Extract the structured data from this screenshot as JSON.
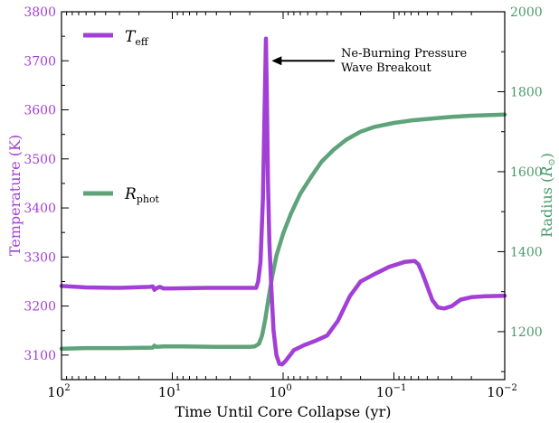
{
  "chart_data": {
    "type": "line",
    "title": "",
    "xlabel": "Time Until Core Collapse (yr)",
    "x_scale": "log",
    "x_reversed": true,
    "xlim": [
      100,
      0.01
    ],
    "x_ticks": [
      {
        "value": 100,
        "base": "10",
        "exp": "2"
      },
      {
        "value": 10,
        "base": "10",
        "exp": "1"
      },
      {
        "value": 1,
        "base": "10",
        "exp": "0"
      },
      {
        "value": 0.1,
        "base": "10",
        "exp": "−1"
      },
      {
        "value": 0.01,
        "base": "10",
        "exp": "−2"
      }
    ],
    "y_left": {
      "label": "Temperature (K)",
      "lim": [
        3050,
        3800
      ],
      "ticks": [
        "3100",
        "3200",
        "3300",
        "3400",
        "3500",
        "3600",
        "3700",
        "3800"
      ],
      "color": "#a23fd6"
    },
    "y_right": {
      "label_main": "Radius (",
      "label_sym": "R",
      "label_sub": "⊙",
      "label_close": ")",
      "lim": [
        1080,
        2000
      ],
      "ticks": [
        "1200",
        "1400",
        "1600",
        "1800",
        "2000"
      ],
      "color": "#4a9a6a"
    },
    "series": [
      {
        "name_main": "T",
        "name_sub": "eff",
        "axis": "left",
        "color": "#a23fd6",
        "points": [
          [
            100,
            3241
          ],
          [
            60,
            3238
          ],
          [
            30,
            3237
          ],
          [
            16,
            3239
          ],
          [
            15,
            3240
          ],
          [
            14.5,
            3233
          ],
          [
            14,
            3236
          ],
          [
            13,
            3239
          ],
          [
            12,
            3236
          ],
          [
            10,
            3236
          ],
          [
            5,
            3237
          ],
          [
            2,
            3237
          ],
          [
            1.75,
            3237
          ],
          [
            1.68,
            3250
          ],
          [
            1.6,
            3290
          ],
          [
            1.52,
            3420
          ],
          [
            1.47,
            3600
          ],
          [
            1.43,
            3745
          ],
          [
            1.4,
            3620
          ],
          [
            1.37,
            3450
          ],
          [
            1.33,
            3330
          ],
          [
            1.28,
            3240
          ],
          [
            1.22,
            3150
          ],
          [
            1.15,
            3100
          ],
          [
            1.08,
            3082
          ],
          [
            1.02,
            3081
          ],
          [
            0.95,
            3088
          ],
          [
            0.8,
            3110
          ],
          [
            0.65,
            3120
          ],
          [
            0.5,
            3130
          ],
          [
            0.4,
            3140
          ],
          [
            0.32,
            3170
          ],
          [
            0.25,
            3220
          ],
          [
            0.2,
            3250
          ],
          [
            0.15,
            3265
          ],
          [
            0.11,
            3280
          ],
          [
            0.08,
            3290
          ],
          [
            0.065,
            3292
          ],
          [
            0.06,
            3285
          ],
          [
            0.055,
            3265
          ],
          [
            0.05,
            3240
          ],
          [
            0.045,
            3212
          ],
          [
            0.04,
            3197
          ],
          [
            0.035,
            3195
          ],
          [
            0.03,
            3200
          ],
          [
            0.025,
            3213
          ],
          [
            0.02,
            3218
          ],
          [
            0.015,
            3220
          ],
          [
            0.01,
            3221
          ]
        ]
      },
      {
        "name_main": "R",
        "name_sub": "phot",
        "axis": "right",
        "color": "#5fa37a",
        "points": [
          [
            100,
            1157
          ],
          [
            60,
            1159
          ],
          [
            30,
            1159
          ],
          [
            15,
            1160
          ],
          [
            14.5,
            1165
          ],
          [
            14,
            1162
          ],
          [
            12,
            1163
          ],
          [
            8,
            1163
          ],
          [
            4,
            1162
          ],
          [
            2,
            1162
          ],
          [
            1.8,
            1163
          ],
          [
            1.65,
            1170
          ],
          [
            1.55,
            1190
          ],
          [
            1.45,
            1230
          ],
          [
            1.35,
            1285
          ],
          [
            1.25,
            1340
          ],
          [
            1.15,
            1390
          ],
          [
            1.0,
            1445
          ],
          [
            0.85,
            1495
          ],
          [
            0.7,
            1545
          ],
          [
            0.55,
            1590
          ],
          [
            0.45,
            1625
          ],
          [
            0.35,
            1655
          ],
          [
            0.27,
            1680
          ],
          [
            0.2,
            1700
          ],
          [
            0.15,
            1712
          ],
          [
            0.1,
            1722
          ],
          [
            0.07,
            1728
          ],
          [
            0.05,
            1732
          ],
          [
            0.03,
            1737
          ],
          [
            0.02,
            1740
          ],
          [
            0.01,
            1743
          ]
        ]
      }
    ],
    "annotation": {
      "line1": "Ne-Burning Pressure",
      "line2": "Wave Breakout",
      "arrow_target": {
        "x": 1.42,
        "y": 3700
      }
    },
    "grid": false
  }
}
